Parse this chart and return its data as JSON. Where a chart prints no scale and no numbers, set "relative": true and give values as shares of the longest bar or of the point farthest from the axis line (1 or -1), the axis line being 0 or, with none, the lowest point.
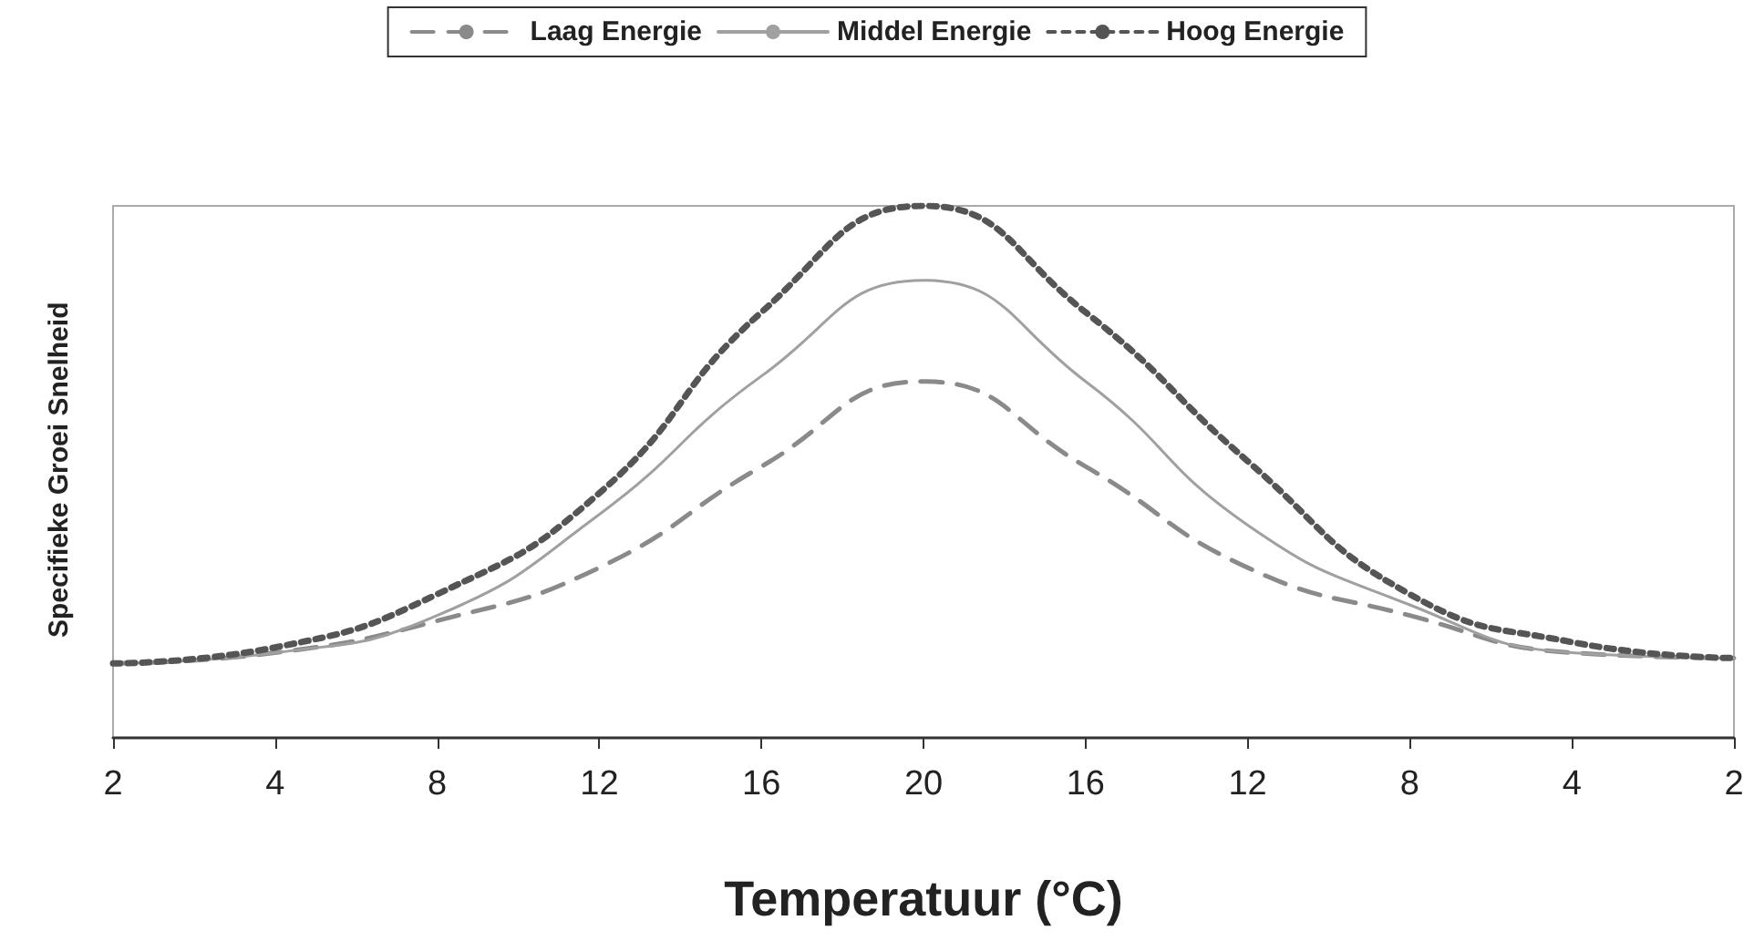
{
  "chart_data": {
    "type": "line",
    "relative": true,
    "xlabel": "Temperatuur (°C)",
    "ylabel": "Specifieke Groei Snelheid",
    "categories": [
      "2",
      "4",
      "8",
      "12",
      "16",
      "20",
      "16",
      "12",
      "8",
      "4",
      "2"
    ],
    "series": [
      {
        "name": "Laag Energie",
        "color": "#8a8a8a",
        "line_style": "dashed",
        "values": [
          0.14,
          0.16,
          0.22,
          0.32,
          0.51,
          0.67,
          0.51,
          0.32,
          0.23,
          0.16,
          0.15
        ]
      },
      {
        "name": "Middel Energie",
        "color": "#a0a0a0",
        "line_style": "solid",
        "values": [
          0.14,
          0.16,
          0.23,
          0.42,
          0.68,
          0.86,
          0.67,
          0.4,
          0.25,
          0.16,
          0.15
        ]
      },
      {
        "name": "Hoog Energie",
        "color": "#555555",
        "line_style": "dotted",
        "values": [
          0.14,
          0.17,
          0.27,
          0.46,
          0.8,
          1,
          0.8,
          0.52,
          0.27,
          0.18,
          0.15
        ]
      }
    ],
    "legend": "top",
    "marker": "none",
    "grid": false
  }
}
